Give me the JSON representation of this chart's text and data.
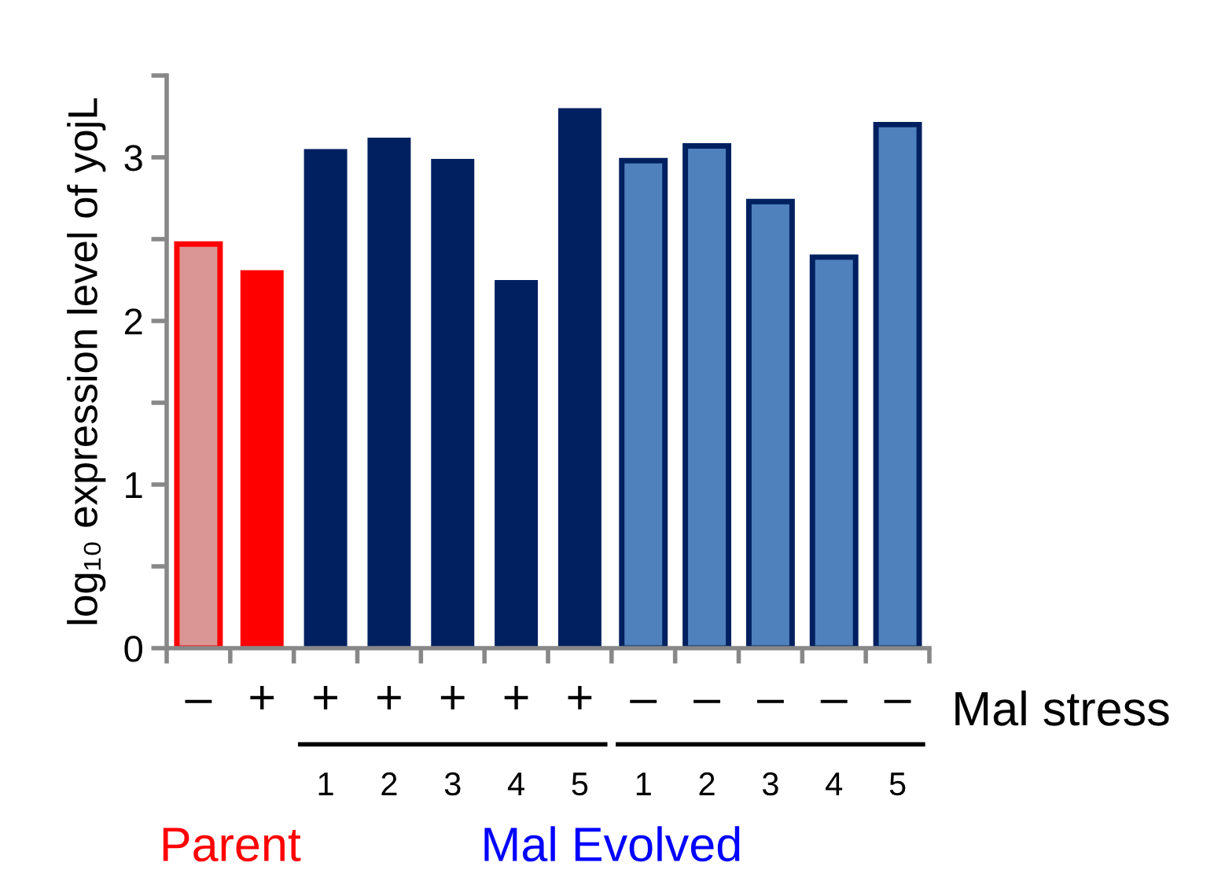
{
  "chart_data": {
    "type": "bar",
    "ylabel": "log₁₀ expression level of yojL",
    "categories": [
      "–",
      "+",
      "+",
      "+",
      "+",
      "+",
      "+",
      "–",
      "–",
      "–",
      "–",
      "–"
    ],
    "values": [
      2.47,
      2.31,
      3.05,
      3.12,
      2.99,
      2.25,
      3.3,
      2.98,
      3.07,
      2.73,
      2.39,
      3.2
    ],
    "colors": [
      "#da9694",
      "#ff0000",
      "#002060",
      "#002060",
      "#002060",
      "#002060",
      "#002060",
      "#4f81bd",
      "#4f81bd",
      "#4f81bd",
      "#4f81bd",
      "#4f81bd"
    ],
    "ylim": [
      0,
      3.5
    ],
    "yticks": [
      0,
      {
        "value": 0.5,
        "label": null
      },
      1,
      {
        "value": 1.5,
        "label": null
      },
      2,
      {
        "value": 2.5,
        "label": null
      },
      3,
      {
        "value": 3.5,
        "label": null
      }
    ],
    "grid": false,
    "legend": false,
    "annotations": [
      "Mal stress",
      "1",
      "2",
      "3",
      "4",
      "5",
      "1",
      "2",
      "3",
      "4",
      "5",
      "Parent",
      "Mal Evolved"
    ]
  }
}
